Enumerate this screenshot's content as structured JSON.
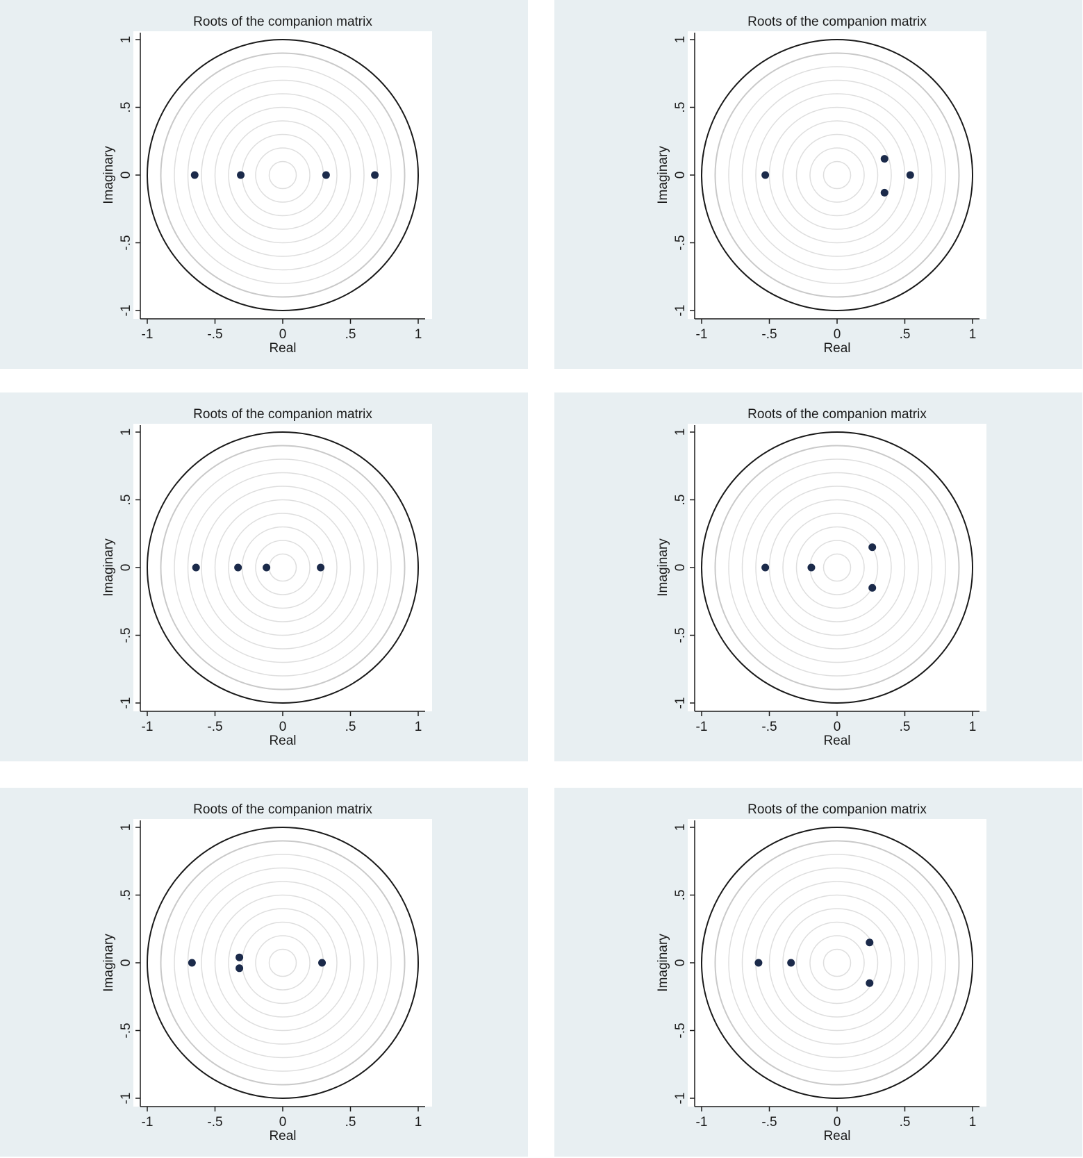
{
  "colors": {
    "panel_background": "#e8eff2",
    "plot_background": "#ffffff",
    "unit_circle": "#1a1a1a",
    "outer_grid_circle": "#c9c9c9",
    "inner_grid_circles": "#dedede",
    "points": "#1b2a4a"
  },
  "chart_data": [
    {
      "type": "scatter",
      "title": "Roots of the companion matrix",
      "xlabel": "Real",
      "ylabel": "Imaginary",
      "xlim": [
        -1,
        1
      ],
      "ylim": [
        -1,
        1
      ],
      "xticks": [
        "-1",
        "-.5",
        "0",
        ".5",
        "1"
      ],
      "yticks": [
        "-1",
        "-.5",
        "0",
        ".5",
        "1"
      ],
      "grid": "concentric circles",
      "legend": "none",
      "points": [
        {
          "x": -0.65,
          "y": 0
        },
        {
          "x": -0.31,
          "y": 0
        },
        {
          "x": 0.32,
          "y": 0
        },
        {
          "x": 0.68,
          "y": 0
        }
      ]
    },
    {
      "type": "scatter",
      "title": "Roots of the companion matrix",
      "xlabel": "Real",
      "ylabel": "Imaginary",
      "xlim": [
        -1,
        1
      ],
      "ylim": [
        -1,
        1
      ],
      "xticks": [
        "-1",
        "-.5",
        "0",
        ".5",
        "1"
      ],
      "yticks": [
        "-1",
        "-.5",
        "0",
        ".5",
        "1"
      ],
      "grid": "concentric circles",
      "legend": "none",
      "points": [
        {
          "x": -0.53,
          "y": 0
        },
        {
          "x": 0.35,
          "y": 0.12
        },
        {
          "x": 0.35,
          "y": -0.13
        },
        {
          "x": 0.54,
          "y": 0
        }
      ]
    },
    {
      "type": "scatter",
      "title": "Roots of the companion matrix",
      "xlabel": "Real",
      "ylabel": "Imaginary",
      "xlim": [
        -1,
        1
      ],
      "ylim": [
        -1,
        1
      ],
      "xticks": [
        "-1",
        "-.5",
        "0",
        ".5",
        "1"
      ],
      "yticks": [
        "-1",
        "-.5",
        "0",
        ".5",
        "1"
      ],
      "grid": "concentric circles",
      "legend": "none",
      "points": [
        {
          "x": -0.64,
          "y": 0
        },
        {
          "x": -0.33,
          "y": 0
        },
        {
          "x": -0.12,
          "y": 0
        },
        {
          "x": 0.28,
          "y": 0
        }
      ]
    },
    {
      "type": "scatter",
      "title": "Roots of the companion matrix",
      "xlabel": "Real",
      "ylabel": "Imaginary",
      "xlim": [
        -1,
        1
      ],
      "ylim": [
        -1,
        1
      ],
      "xticks": [
        "-1",
        "-.5",
        "0",
        ".5",
        "1"
      ],
      "yticks": [
        "-1",
        "-.5",
        "0",
        ".5",
        "1"
      ],
      "grid": "concentric circles",
      "legend": "none",
      "points": [
        {
          "x": -0.53,
          "y": 0
        },
        {
          "x": -0.19,
          "y": 0
        },
        {
          "x": 0.26,
          "y": 0.15
        },
        {
          "x": 0.26,
          "y": -0.15
        }
      ]
    },
    {
      "type": "scatter",
      "title": "Roots of the companion matrix",
      "xlabel": "Real",
      "ylabel": "Imaginary",
      "xlim": [
        -1,
        1
      ],
      "ylim": [
        -1,
        1
      ],
      "xticks": [
        "-1",
        "-.5",
        "0",
        ".5",
        "1"
      ],
      "yticks": [
        "-1",
        "-.5",
        "0",
        ".5",
        "1"
      ],
      "grid": "concentric circles",
      "legend": "none",
      "points": [
        {
          "x": -0.67,
          "y": 0
        },
        {
          "x": -0.32,
          "y": 0.04
        },
        {
          "x": -0.32,
          "y": -0.04
        },
        {
          "x": 0.29,
          "y": 0
        }
      ]
    },
    {
      "type": "scatter",
      "title": "Roots of the companion matrix",
      "xlabel": "Real",
      "ylabel": "Imaginary",
      "xlim": [
        -1,
        1
      ],
      "ylim": [
        -1,
        1
      ],
      "xticks": [
        "-1",
        "-.5",
        "0",
        ".5",
        "1"
      ],
      "yticks": [
        "-1",
        "-.5",
        "0",
        ".5",
        "1"
      ],
      "grid": "concentric circles",
      "legend": "none",
      "points": [
        {
          "x": -0.58,
          "y": 0
        },
        {
          "x": -0.34,
          "y": 0
        },
        {
          "x": 0.24,
          "y": 0.15
        },
        {
          "x": 0.24,
          "y": -0.15
        }
      ]
    }
  ]
}
